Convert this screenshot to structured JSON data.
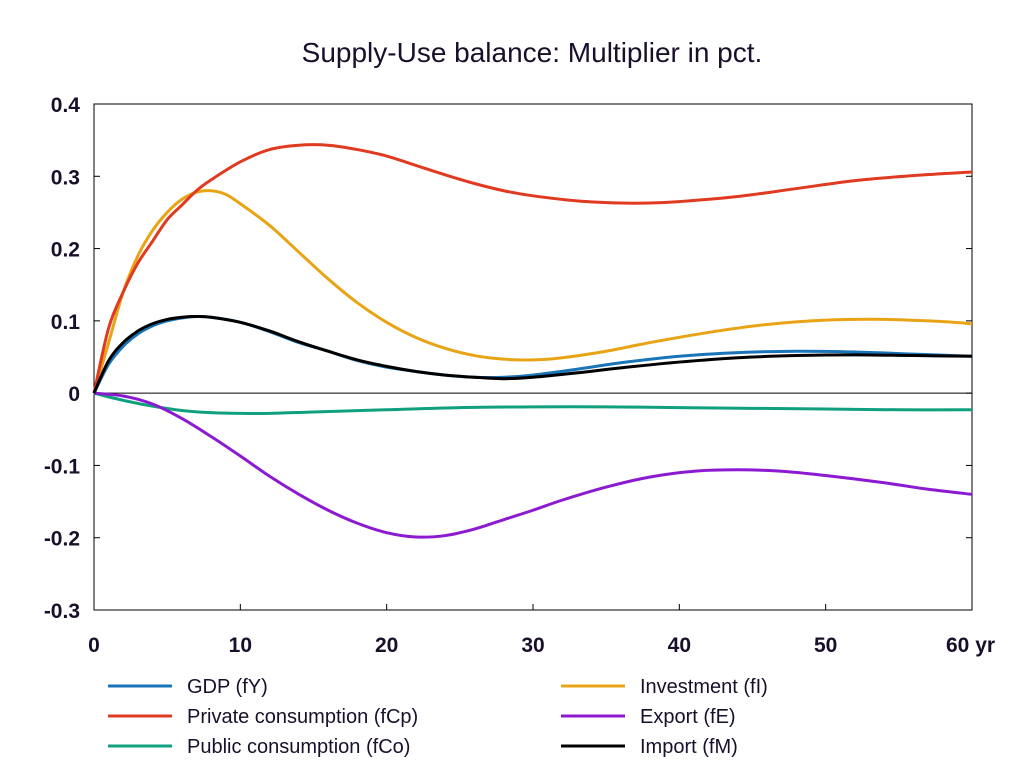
{
  "chart_data": {
    "type": "line",
    "title": "Supply-Use balance: Multiplier in pct.",
    "xlabel": "",
    "ylabel": "",
    "x_unit": "yr",
    "xlim": [
      0,
      60
    ],
    "ylim": [
      -0.3,
      0.4
    ],
    "xticks": [
      0,
      10,
      20,
      30,
      40,
      50,
      60
    ],
    "yticks": [
      -0.3,
      -0.2,
      -0.1,
      0,
      0.1,
      0.2,
      0.3,
      0.4
    ],
    "xtick_labels": [
      "0",
      "10",
      "20",
      "30",
      "40",
      "50",
      "60 yr"
    ],
    "ytick_labels": [
      "-0.3",
      "-0.2",
      "-0.1",
      "0",
      "0.1",
      "0.2",
      "0.3",
      "0.4"
    ],
    "grid": false,
    "legend_position": "bottom",
    "series": [
      {
        "name": "GDP (fY)",
        "color": "#1a75b8",
        "points": [
          [
            0,
            0
          ],
          [
            1,
            0.04
          ],
          [
            2,
            0.065
          ],
          [
            3,
            0.082
          ],
          [
            4,
            0.093
          ],
          [
            5,
            0.1
          ],
          [
            6,
            0.104
          ],
          [
            7,
            0.106
          ],
          [
            8,
            0.105
          ],
          [
            10,
            0.098
          ],
          [
            12,
            0.085
          ],
          [
            14,
            0.07
          ],
          [
            16,
            0.058
          ],
          [
            18,
            0.045
          ],
          [
            20,
            0.036
          ],
          [
            22,
            0.03
          ],
          [
            24,
            0.025
          ],
          [
            26,
            0.022
          ],
          [
            28,
            0.022
          ],
          [
            30,
            0.025
          ],
          [
            33,
            0.033
          ],
          [
            36,
            0.042
          ],
          [
            40,
            0.051
          ],
          [
            44,
            0.056
          ],
          [
            48,
            0.058
          ],
          [
            52,
            0.057
          ],
          [
            56,
            0.054
          ],
          [
            60,
            0.051
          ]
        ]
      },
      {
        "name": "Private consumption (fCp)",
        "color": "#e03a20",
        "points": [
          [
            0,
            0
          ],
          [
            1,
            0.09
          ],
          [
            2,
            0.14
          ],
          [
            3,
            0.18
          ],
          [
            4,
            0.21
          ],
          [
            5,
            0.24
          ],
          [
            6,
            0.26
          ],
          [
            7,
            0.28
          ],
          [
            8,
            0.295
          ],
          [
            10,
            0.32
          ],
          [
            12,
            0.337
          ],
          [
            14,
            0.343
          ],
          [
            16,
            0.343
          ],
          [
            18,
            0.337
          ],
          [
            20,
            0.328
          ],
          [
            22,
            0.315
          ],
          [
            24,
            0.302
          ],
          [
            26,
            0.29
          ],
          [
            28,
            0.28
          ],
          [
            30,
            0.273
          ],
          [
            33,
            0.266
          ],
          [
            36,
            0.263
          ],
          [
            38,
            0.263
          ],
          [
            40,
            0.265
          ],
          [
            44,
            0.272
          ],
          [
            48,
            0.283
          ],
          [
            52,
            0.294
          ],
          [
            56,
            0.301
          ],
          [
            60,
            0.306
          ]
        ]
      },
      {
        "name": "Public consumption (fCo)",
        "color": "#10a080",
        "points": [
          [
            0,
            0
          ],
          [
            2,
            -0.01
          ],
          [
            4,
            -0.018
          ],
          [
            6,
            -0.024
          ],
          [
            8,
            -0.027
          ],
          [
            10,
            -0.028
          ],
          [
            12,
            -0.028
          ],
          [
            15,
            -0.026
          ],
          [
            20,
            -0.023
          ],
          [
            25,
            -0.02
          ],
          [
            30,
            -0.019
          ],
          [
            35,
            -0.019
          ],
          [
            40,
            -0.02
          ],
          [
            45,
            -0.021
          ],
          [
            50,
            -0.022
          ],
          [
            55,
            -0.023
          ],
          [
            60,
            -0.023
          ]
        ]
      },
      {
        "name": "Investment (fI)",
        "color": "#e8a414",
        "points": [
          [
            0,
            0
          ],
          [
            1,
            0.07
          ],
          [
            2,
            0.14
          ],
          [
            3,
            0.19
          ],
          [
            4,
            0.225
          ],
          [
            5,
            0.25
          ],
          [
            6,
            0.268
          ],
          [
            7,
            0.278
          ],
          [
            8,
            0.28
          ],
          [
            9,
            0.275
          ],
          [
            10,
            0.262
          ],
          [
            12,
            0.232
          ],
          [
            14,
            0.195
          ],
          [
            16,
            0.158
          ],
          [
            18,
            0.125
          ],
          [
            20,
            0.098
          ],
          [
            22,
            0.077
          ],
          [
            24,
            0.062
          ],
          [
            26,
            0.052
          ],
          [
            28,
            0.047
          ],
          [
            30,
            0.046
          ],
          [
            32,
            0.049
          ],
          [
            35,
            0.058
          ],
          [
            38,
            0.07
          ],
          [
            42,
            0.084
          ],
          [
            46,
            0.095
          ],
          [
            50,
            0.101
          ],
          [
            54,
            0.102
          ],
          [
            58,
            0.099
          ],
          [
            60,
            0.096
          ]
        ]
      },
      {
        "name": "Export (fE)",
        "color": "#8c1ad0",
        "points": [
          [
            0,
            0
          ],
          [
            2,
            -0.004
          ],
          [
            4,
            -0.015
          ],
          [
            6,
            -0.035
          ],
          [
            8,
            -0.06
          ],
          [
            10,
            -0.087
          ],
          [
            12,
            -0.115
          ],
          [
            14,
            -0.14
          ],
          [
            16,
            -0.162
          ],
          [
            18,
            -0.18
          ],
          [
            20,
            -0.193
          ],
          [
            22,
            -0.199
          ],
          [
            24,
            -0.197
          ],
          [
            26,
            -0.188
          ],
          [
            28,
            -0.175
          ],
          [
            30,
            -0.162
          ],
          [
            32,
            -0.148
          ],
          [
            35,
            -0.13
          ],
          [
            38,
            -0.116
          ],
          [
            41,
            -0.108
          ],
          [
            44,
            -0.106
          ],
          [
            47,
            -0.108
          ],
          [
            50,
            -0.114
          ],
          [
            54,
            -0.124
          ],
          [
            57,
            -0.133
          ],
          [
            60,
            -0.14
          ]
        ]
      },
      {
        "name": "Import (fM)",
        "color": "#000000",
        "points": [
          [
            0,
            0
          ],
          [
            1,
            0.045
          ],
          [
            2,
            0.07
          ],
          [
            3,
            0.086
          ],
          [
            4,
            0.096
          ],
          [
            5,
            0.102
          ],
          [
            6,
            0.105
          ],
          [
            7,
            0.106
          ],
          [
            8,
            0.105
          ],
          [
            10,
            0.098
          ],
          [
            12,
            0.086
          ],
          [
            14,
            0.071
          ],
          [
            16,
            0.058
          ],
          [
            18,
            0.046
          ],
          [
            20,
            0.037
          ],
          [
            22,
            0.03
          ],
          [
            24,
            0.025
          ],
          [
            26,
            0.022
          ],
          [
            28,
            0.02
          ],
          [
            30,
            0.022
          ],
          [
            33,
            0.028
          ],
          [
            36,
            0.035
          ],
          [
            40,
            0.043
          ],
          [
            44,
            0.049
          ],
          [
            48,
            0.052
          ],
          [
            52,
            0.053
          ],
          [
            56,
            0.052
          ],
          [
            60,
            0.051
          ]
        ]
      }
    ]
  }
}
